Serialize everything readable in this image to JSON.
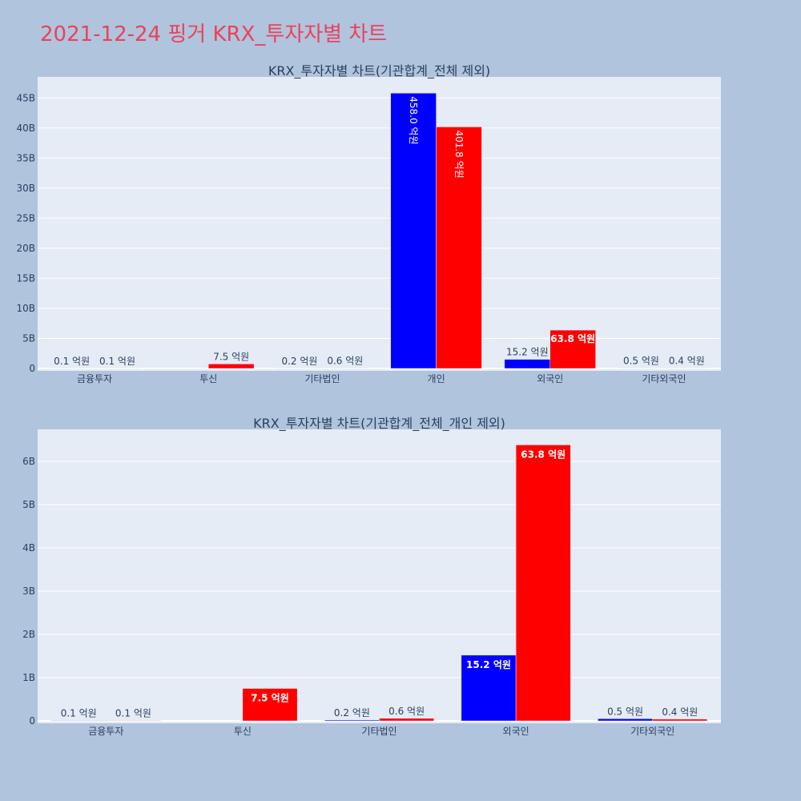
{
  "page": {
    "title": "2021-12-24 핑거 KRX_투자자별 차트"
  },
  "colors": {
    "background": "#b0c4de",
    "plot_bg": "#e5ecf6",
    "series1": "#0000ff",
    "series2": "#ff0000",
    "title": "#e8435a",
    "text": "#2a3f5f"
  },
  "chart_data": [
    {
      "type": "bar",
      "title": "KRX_투자자별 차트(기관합계_전체 제외)",
      "categories": [
        "금융투자",
        "투신",
        "기타법인",
        "개인",
        "외국인",
        "기타외국인"
      ],
      "series": [
        {
          "color": "#0000ff",
          "values": [
            10000000,
            0,
            20000000,
            45800000000,
            1520000000,
            50000000
          ],
          "labels": [
            "0.1 억원",
            "",
            "0.2 억원",
            "458.0 억원",
            "15.2 억원",
            "0.5 억원"
          ]
        },
        {
          "color": "#ff0000",
          "values": [
            10000000,
            750000000,
            60000000,
            40180000000,
            6380000000,
            40000000
          ],
          "labels": [
            "0.1 억원",
            "7.5 억원",
            "0.6 억원",
            "401.8 억원",
            "63.8 억원",
            "0.4 억원"
          ]
        }
      ],
      "ylim": [
        0,
        48500000000
      ],
      "yticks": [
        {
          "value": 0,
          "label": "0"
        },
        {
          "value": 5000000000,
          "label": "5B"
        },
        {
          "value": 10000000000,
          "label": "10B"
        },
        {
          "value": 15000000000,
          "label": "15B"
        },
        {
          "value": 20000000000,
          "label": "20B"
        },
        {
          "value": 25000000000,
          "label": "25B"
        },
        {
          "value": 30000000000,
          "label": "30B"
        },
        {
          "value": 35000000000,
          "label": "35B"
        },
        {
          "value": 40000000000,
          "label": "40B"
        },
        {
          "value": 45000000000,
          "label": "45B"
        }
      ],
      "grid": true
    },
    {
      "type": "bar",
      "title": "KRX_투자자별 차트(기관합계_전체_개인 제외)",
      "categories": [
        "금융투자",
        "투신",
        "기타법인",
        "외국인",
        "기타외국인"
      ],
      "series": [
        {
          "color": "#0000ff",
          "values": [
            10000000,
            0,
            20000000,
            1520000000,
            50000000
          ],
          "labels": [
            "0.1 억원",
            "",
            "0.2 억원",
            "15.2 억원",
            "0.5 억원"
          ]
        },
        {
          "color": "#ff0000",
          "values": [
            10000000,
            750000000,
            60000000,
            6380000000,
            40000000
          ],
          "labels": [
            "0.1 억원",
            "7.5 억원",
            "0.6 억원",
            "63.8 억원",
            "0.4 억원"
          ]
        }
      ],
      "ylim": [
        0,
        6740000000
      ],
      "yticks": [
        {
          "value": 0,
          "label": "0"
        },
        {
          "value": 1000000000,
          "label": "1B"
        },
        {
          "value": 2000000000,
          "label": "2B"
        },
        {
          "value": 3000000000,
          "label": "3B"
        },
        {
          "value": 4000000000,
          "label": "4B"
        },
        {
          "value": 5000000000,
          "label": "5B"
        },
        {
          "value": 6000000000,
          "label": "6B"
        }
      ],
      "grid": true
    }
  ]
}
